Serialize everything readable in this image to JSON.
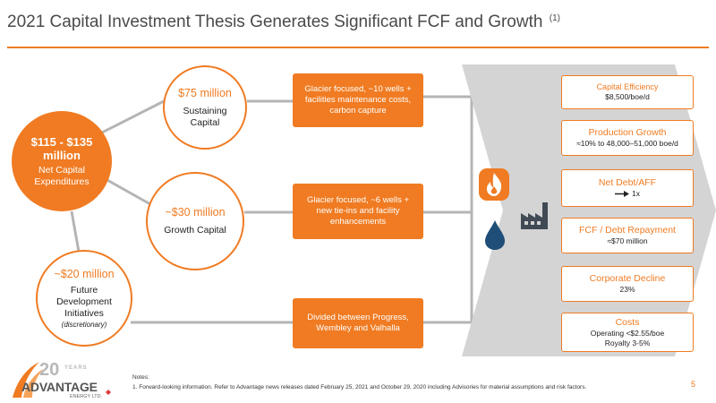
{
  "title": "2021 Capital Investment Thesis Generates Significant FCF and Growth",
  "title_footnote": "(1)",
  "net_capex": {
    "amount": "$115 - $135 million",
    "label": "Net Capital Expenditures"
  },
  "sustaining": {
    "amount": "$75 million",
    "label": "Sustaining Capital"
  },
  "growth": {
    "amount": "~$30 million",
    "label": "Growth Capital"
  },
  "future": {
    "amount": "~$20 million",
    "label": "Future Development Initiatives",
    "note": "(discretionary)"
  },
  "boxes": {
    "sustaining": "Glacier focused, ~10 wells + facilities maintenance costs, carbon capture",
    "growth": "Glacier focused, ~6 wells + new tie-ins and facility enhancements",
    "future": "Divided between Progress, Wembley and Valhalla"
  },
  "icons": [
    "flame-icon",
    "oil-drop-icon",
    "factory-icon"
  ],
  "metrics": [
    {
      "title": "Capital Efficiency",
      "value": "$8,500/boe/d"
    },
    {
      "title": "Production Growth",
      "value": "≈10% to 48,000–51,000 boe/d"
    },
    {
      "title": "Net Debt/AFF",
      "value": "1x"
    },
    {
      "title": "FCF / Debt Repayment",
      "value": "≈$70 million"
    },
    {
      "title": "Corporate Decline",
      "value": "23%"
    },
    {
      "title": "Costs",
      "value": "Operating <$2.55/boe",
      "value2": "Royalty 3-5%"
    }
  ],
  "logo": {
    "years_number": "20",
    "years_word": "YEARS",
    "name": "ADVANTAGE",
    "sub": "ENERGY LTD."
  },
  "notes": {
    "heading": "Notes:",
    "line1": "1. Forward-looking information. Refer to Advantage news releases dated February 25, 2021 and October 29, 2020 including Advisories for material assumptions and risk factors."
  },
  "page_number": "5",
  "colors": {
    "accent": "#f07b22",
    "chevron": "#d4d4d4",
    "connector": "#b5b5b5",
    "icon_dark": "#404a55",
    "drop_blue": "#1f4e79"
  }
}
